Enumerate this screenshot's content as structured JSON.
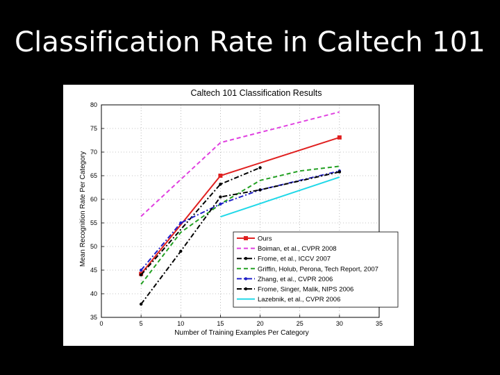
{
  "slide": {
    "title": "Classification Rate in Caltech 101"
  },
  "chart_data": {
    "type": "line",
    "title": "Caltech 101 Classification Results",
    "xlabel": "Number of Training Examples Per Category",
    "ylabel": "Mean Recognition Rate Per Category",
    "xlim": [
      0,
      35
    ],
    "ylim": [
      35,
      80
    ],
    "xticks": [
      0,
      5,
      10,
      15,
      20,
      25,
      30,
      35
    ],
    "yticks": [
      35,
      40,
      45,
      50,
      55,
      60,
      65,
      70,
      75,
      80
    ],
    "grid": true,
    "legend_position": "lower-right",
    "series": [
      {
        "name": "Ours",
        "color": "#e02020",
        "dash": "solid",
        "marker": "square",
        "x": [
          5,
          15,
          30
        ],
        "y": [
          44.2,
          65.0,
          73.1
        ]
      },
      {
        "name": "Boiman, et al., CVPR 2008",
        "color": "#e040e0",
        "dash": "dashed",
        "marker": "none",
        "x": [
          5,
          15,
          30
        ],
        "y": [
          56.4,
          72.0,
          78.5
        ]
      },
      {
        "name": "Frome, et al., ICCV 2007",
        "color": "#000000",
        "dash": "dashdot",
        "marker": "circle",
        "x": [
          5,
          15,
          20
        ],
        "y": [
          44.0,
          63.2,
          66.7
        ]
      },
      {
        "name": "Griffin, Holub, Perona, Tech Report, 2007",
        "color": "#22a022",
        "dash": "dashed",
        "marker": "none",
        "x": [
          5,
          10,
          15,
          20,
          25,
          30
        ],
        "y": [
          42.0,
          53.0,
          59.0,
          64.0,
          66.0,
          67.0
        ]
      },
      {
        "name": "Zhang, et al., CVPR 2006",
        "color": "#2020c8",
        "dash": "dashdot",
        "marker": "circle",
        "x": [
          5,
          10,
          15,
          20,
          30
        ],
        "y": [
          45.0,
          55.0,
          59.0,
          62.0,
          66.0
        ]
      },
      {
        "name": "Frome, Singer, Malik, NIPS 2006",
        "color": "#000000",
        "dash": "dashdot",
        "marker": "circle",
        "x": [
          5,
          10,
          15,
          20,
          30
        ],
        "y": [
          37.8,
          49.0,
          60.5,
          62.0,
          65.8
        ]
      },
      {
        "name": "Lazebnik, et al., CVPR 2006",
        "color": "#20d8e8",
        "dash": "solid",
        "marker": "none",
        "x": [
          15,
          30
        ],
        "y": [
          56.3,
          64.7
        ]
      }
    ]
  }
}
